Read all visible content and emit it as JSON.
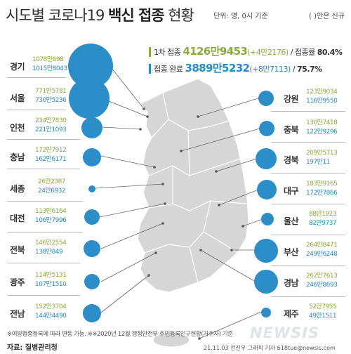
{
  "header": {
    "title_prefix": "시도별 코로나19",
    "title_bold": "백신 접종",
    "title_suffix": "현황",
    "unit": "단위: 명, 0시 기준",
    "paren_note": "( )안은 신규"
  },
  "summary": {
    "first_label": "1차 접종",
    "first_value": "4126만9453",
    "first_new": "(+4만2176)",
    "first_rate_label": "/ 접종률",
    "first_rate": "80.4%",
    "full_label": "접종 완료",
    "full_value": "3889만5232",
    "full_new": "(+8만7113)",
    "full_rate_sep": "/",
    "full_rate": "75.7%"
  },
  "left_regions": [
    {
      "name": "경기",
      "first": "1078만698",
      "full": "1015만8043"
    },
    {
      "name": "서울",
      "first": "771만5781",
      "full": "730만5236"
    },
    {
      "name": "인천",
      "first": "234만7830",
      "full": "221만1093"
    },
    {
      "name": "충남",
      "first": "172만7912",
      "full": "162만6171"
    },
    {
      "name": "세종",
      "first": "26만2387",
      "full": "24만6932"
    },
    {
      "name": "대전",
      "first": "113만6164",
      "full": "106만7996"
    },
    {
      "name": "전북",
      "first": "146만2554",
      "full": "138만849"
    },
    {
      "name": "광주",
      "first": "114만5131",
      "full": "107만1510"
    },
    {
      "name": "전남",
      "first": "152만3704",
      "full": "144만4490"
    }
  ],
  "right_regions": [
    {
      "name": "강원",
      "first": "123만9034",
      "full": "116만9550"
    },
    {
      "name": "충북",
      "first": "130만7418",
      "full": "122만9296"
    },
    {
      "name": "경북",
      "first": "209만5713",
      "full": "197만11"
    },
    {
      "name": "대구",
      "first": "183만9165",
      "full": "172만7866"
    },
    {
      "name": "울산",
      "first": "88만1923",
      "full": "82만9737"
    },
    {
      "name": "부산",
      "first": "264만8471",
      "full": "249만6248"
    },
    {
      "name": "경남",
      "first": "262만7613",
      "full": "246만8693"
    },
    {
      "name": "제주",
      "first": "52만7955",
      "full": "49만1511"
    }
  ],
  "footer": {
    "note": "※여방접종등록에 따라 변동 가능. ※※2020년 12월 행정안전부 주민등록인구현황(거주자) 기준",
    "source": "자료: 질병관리청",
    "credit": "21.11.03 전진우 그래픽 기자 618tue@newsis.com",
    "logo": "NEWSIS"
  },
  "colors": {
    "first": "#8aaa3c",
    "full": "#2a8bc4",
    "bubble": "#2b8ec9",
    "map": "#d8d8d8"
  }
}
